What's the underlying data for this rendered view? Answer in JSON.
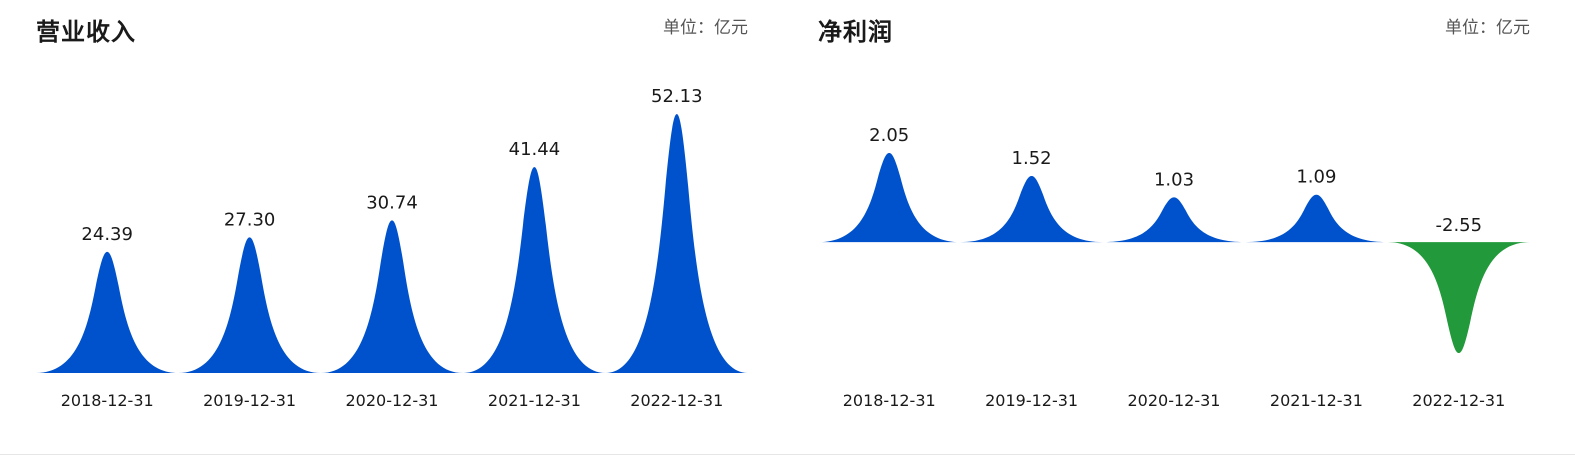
{
  "colors": {
    "positive": "#0052cc",
    "negative": "#22993a",
    "text": "#1a1a1a",
    "unit_text": "#555555"
  },
  "panels": {
    "revenue": {
      "title": "营业收入",
      "unit": "单位：亿元"
    },
    "profit": {
      "title": "净利润",
      "unit": "单位：亿元"
    }
  },
  "chart_data": [
    {
      "type": "bar",
      "title": "营业收入",
      "unit": "单位：亿元",
      "categories": [
        "2018-12-31",
        "2019-12-31",
        "2020-12-31",
        "2021-12-31",
        "2022-12-31"
      ],
      "values": [
        24.39,
        27.3,
        30.74,
        41.44,
        52.13
      ],
      "value_labels": [
        "24.39",
        "27.30",
        "30.74",
        "41.44",
        "52.13"
      ],
      "ylim": [
        0,
        60
      ],
      "grid": false,
      "legend": "none",
      "mark_shape": "peak"
    },
    {
      "type": "bar",
      "title": "净利润",
      "unit": "单位：亿元",
      "categories": [
        "2018-12-31",
        "2019-12-31",
        "2020-12-31",
        "2021-12-31",
        "2022-12-31"
      ],
      "values": [
        2.05,
        1.52,
        1.03,
        1.09,
        -2.55
      ],
      "value_labels": [
        "2.05",
        "1.52",
        "1.03",
        "1.09",
        "-2.55"
      ],
      "ylim": [
        -2.55,
        2.05
      ],
      "grid": false,
      "legend": "none",
      "mark_shape": "peak"
    }
  ]
}
